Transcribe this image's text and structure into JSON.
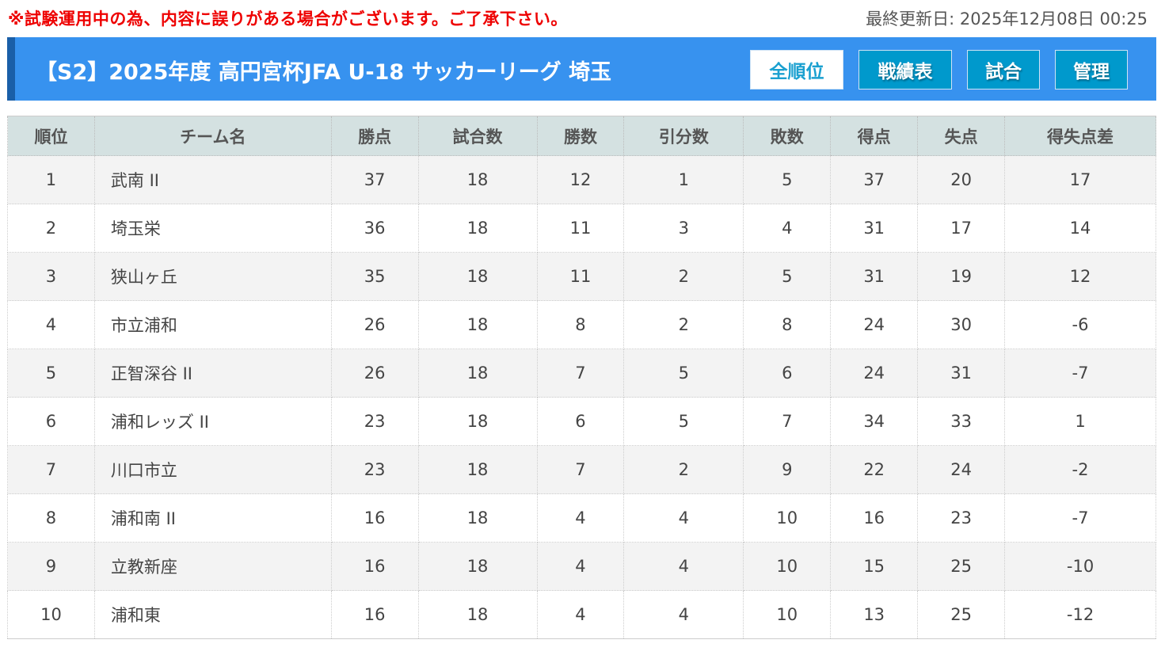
{
  "notice": "※試験運用中の為、内容に誤りがある場合がございます。ご了承下さい。",
  "updated": "最終更新日: 2025年12月08日 00:25",
  "title": "【S2】2025年度 高円宮杯JFA U-18 サッカーリーグ 埼玉",
  "nav": [
    {
      "label": "全順位",
      "active": true
    },
    {
      "label": "戦績表"
    },
    {
      "label": "試合"
    },
    {
      "label": "管理"
    }
  ],
  "colors": {
    "banner": "#3792ef",
    "button": "#0099cc",
    "notice": "#e00000",
    "header": "#d4e1e1"
  },
  "table": {
    "headers": [
      "順位",
      "チーム名",
      "勝点",
      "試合数",
      "勝数",
      "引分数",
      "敗数",
      "得点",
      "失点",
      "得失点差"
    ],
    "rows": [
      [
        "1",
        "武南 II",
        "37",
        "18",
        "12",
        "1",
        "5",
        "37",
        "20",
        "17"
      ],
      [
        "2",
        "埼玉栄",
        "36",
        "18",
        "11",
        "3",
        "4",
        "31",
        "17",
        "14"
      ],
      [
        "3",
        "狭山ヶ丘",
        "35",
        "18",
        "11",
        "2",
        "5",
        "31",
        "19",
        "12"
      ],
      [
        "4",
        "市立浦和",
        "26",
        "18",
        "8",
        "2",
        "8",
        "24",
        "30",
        "-6"
      ],
      [
        "5",
        "正智深谷 II",
        "26",
        "18",
        "7",
        "5",
        "6",
        "24",
        "31",
        "-7"
      ],
      [
        "6",
        "浦和レッズ II",
        "23",
        "18",
        "6",
        "5",
        "7",
        "34",
        "33",
        "1"
      ],
      [
        "7",
        "川口市立",
        "23",
        "18",
        "7",
        "2",
        "9",
        "22",
        "24",
        "-2"
      ],
      [
        "8",
        "浦和南 II",
        "16",
        "18",
        "4",
        "4",
        "10",
        "16",
        "23",
        "-7"
      ],
      [
        "9",
        "立教新座",
        "16",
        "18",
        "4",
        "4",
        "10",
        "15",
        "25",
        "-10"
      ],
      [
        "10",
        "浦和東",
        "16",
        "18",
        "4",
        "4",
        "10",
        "13",
        "25",
        "-12"
      ]
    ]
  }
}
